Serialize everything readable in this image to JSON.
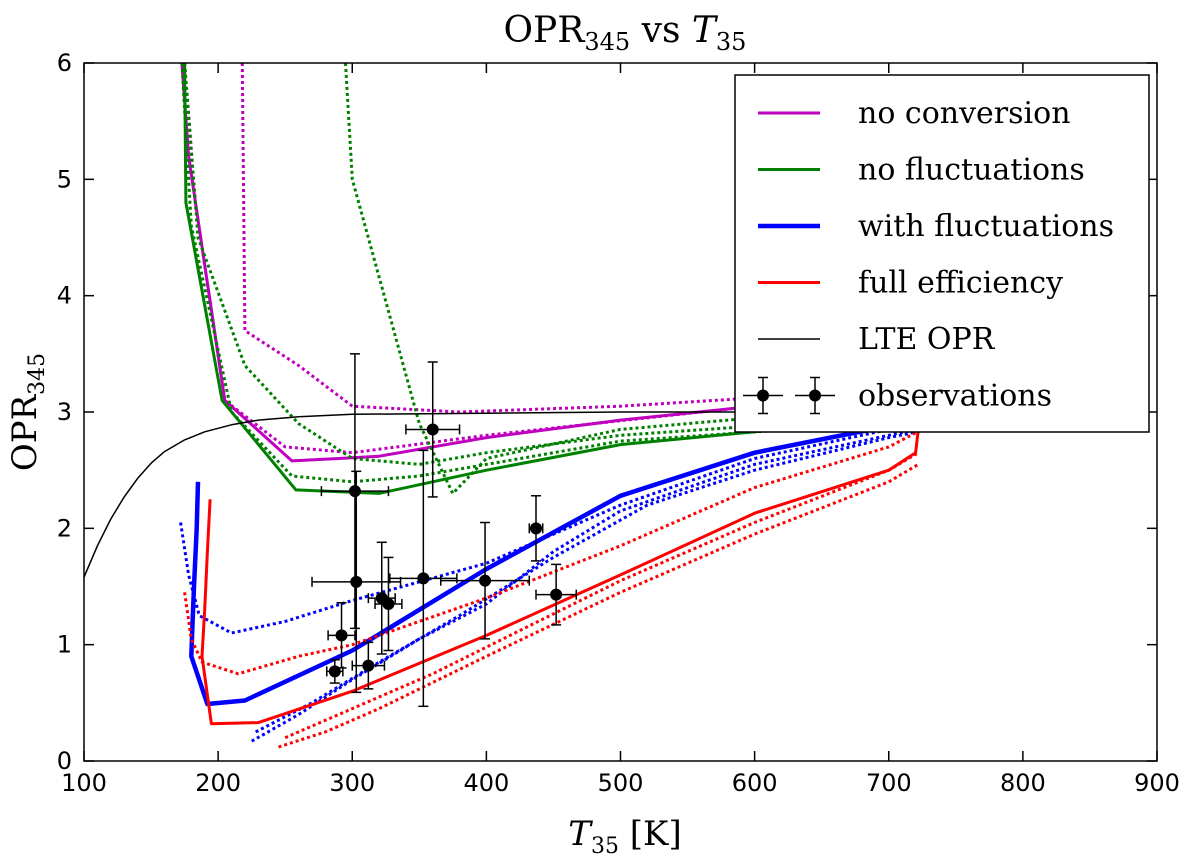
{
  "chart_data": {
    "type": "line",
    "title": {
      "base": "OPR",
      "base_sub": "345",
      "mid": " vs ",
      "var": "T",
      "var_sub": "35"
    },
    "xlabel": {
      "var": "T",
      "var_sub": "35",
      "unit": " [K]"
    },
    "ylabel": {
      "base": "OPR",
      "base_sub": "345"
    },
    "xlim": [
      100,
      900
    ],
    "ylim": [
      0,
      6
    ],
    "xticks": [
      100,
      200,
      300,
      400,
      500,
      600,
      700,
      800,
      900
    ],
    "yticks": [
      0,
      1,
      2,
      3,
      4,
      5,
      6
    ],
    "xtick_labels": [
      "100",
      "200",
      "300",
      "400",
      "500",
      "600",
      "700",
      "800",
      "900"
    ],
    "ytick_labels": [
      "0",
      "1",
      "2",
      "3",
      "4",
      "5",
      "6"
    ],
    "grid": false,
    "legend_position": "top-right",
    "colors": {
      "no_conversion": "#bf00bf",
      "no_fluctuations": "#008000",
      "with_fluctuations": "#0000ff",
      "full_efficiency": "#ff0000",
      "lte": "#000000",
      "observations": "#000000"
    },
    "series": [
      {
        "name": "no conversion",
        "color": "#bf00bf",
        "style": "solid",
        "width": 3,
        "points": [
          [
            173,
            6.0
          ],
          [
            178,
            5.2
          ],
          [
            205,
            3.1
          ],
          [
            255,
            2.58
          ],
          [
            290,
            2.6
          ],
          [
            320,
            2.62
          ],
          [
            400,
            2.78
          ],
          [
            500,
            2.93
          ],
          [
            600,
            3.05
          ],
          [
            640,
            3.1
          ]
        ]
      },
      {
        "name": "no conversion (dotted 1)",
        "color": "#bf00bf",
        "style": "dotted",
        "width": 3,
        "points": [
          [
            218,
            6.0
          ],
          [
            220,
            3.7
          ],
          [
            260,
            3.4
          ],
          [
            300,
            3.05
          ],
          [
            380,
            3.0
          ],
          [
            500,
            3.05
          ],
          [
            640,
            3.15
          ]
        ]
      },
      {
        "name": "no conversion (dotted 2)",
        "color": "#bf00bf",
        "style": "dotted",
        "width": 3,
        "points": [
          [
            175,
            6.0
          ],
          [
            183,
            4.8
          ],
          [
            205,
            3.1
          ],
          [
            250,
            2.7
          ],
          [
            300,
            2.65
          ],
          [
            400,
            2.8
          ],
          [
            640,
            3.1
          ]
        ]
      },
      {
        "name": "no fluctuations",
        "color": "#008000",
        "style": "solid",
        "width": 3,
        "points": [
          [
            175,
            6.0
          ],
          [
            176,
            4.8
          ],
          [
            203,
            3.1
          ],
          [
            258,
            2.33
          ],
          [
            320,
            2.3
          ],
          [
            400,
            2.5
          ],
          [
            500,
            2.72
          ],
          [
            600,
            2.83
          ],
          [
            690,
            2.93
          ]
        ]
      },
      {
        "name": "no fluctuations (dotted 1)",
        "color": "#008000",
        "style": "dotted",
        "width": 3,
        "points": [
          [
            295,
            6.0
          ],
          [
            300,
            5.0
          ],
          [
            350,
            2.9
          ],
          [
            375,
            2.3
          ],
          [
            400,
            2.6
          ],
          [
            500,
            2.85
          ],
          [
            600,
            2.95
          ],
          [
            690,
            3.0
          ]
        ]
      },
      {
        "name": "no fluctuations (dotted 2)",
        "color": "#008000",
        "style": "dotted",
        "width": 3,
        "points": [
          [
            175,
            6.0
          ],
          [
            185,
            4.5
          ],
          [
            220,
            3.4
          ],
          [
            260,
            2.9
          ],
          [
            300,
            2.6
          ],
          [
            350,
            2.55
          ],
          [
            400,
            2.65
          ],
          [
            500,
            2.8
          ],
          [
            690,
            2.95
          ]
        ]
      },
      {
        "name": "no fluctuations (dotted 3)",
        "color": "#008000",
        "style": "dotted",
        "width": 3,
        "points": [
          [
            173,
            6.0
          ],
          [
            180,
            4.6
          ],
          [
            210,
            3.0
          ],
          [
            255,
            2.45
          ],
          [
            300,
            2.4
          ],
          [
            350,
            2.45
          ],
          [
            400,
            2.55
          ],
          [
            500,
            2.75
          ],
          [
            690,
            2.9
          ]
        ]
      },
      {
        "name": "with fluctuations",
        "color": "#0000ff",
        "style": "solid",
        "width": 4.5,
        "points": [
          [
            185,
            2.4
          ],
          [
            184,
            2.0
          ],
          [
            182,
            1.5
          ],
          [
            181,
            1.2
          ],
          [
            180,
            0.9
          ],
          [
            192,
            0.49
          ],
          [
            220,
            0.52
          ],
          [
            300,
            0.95
          ],
          [
            400,
            1.65
          ],
          [
            500,
            2.28
          ],
          [
            600,
            2.65
          ],
          [
            700,
            2.88
          ],
          [
            760,
            3.0
          ]
        ]
      },
      {
        "name": "with fluctuations (dotted 1)",
        "color": "#0000ff",
        "style": "dotted",
        "width": 3,
        "points": [
          [
            172,
            2.05
          ],
          [
            178,
            1.6
          ],
          [
            186,
            1.25
          ],
          [
            210,
            1.1
          ],
          [
            250,
            1.2
          ],
          [
            300,
            1.38
          ],
          [
            400,
            1.7
          ],
          [
            500,
            2.2
          ],
          [
            600,
            2.6
          ],
          [
            700,
            2.85
          ],
          [
            760,
            2.98
          ]
        ]
      },
      {
        "name": "with fluctuations (dotted 2)",
        "color": "#0000ff",
        "style": "dotted",
        "width": 3,
        "points": [
          [
            225,
            0.17
          ],
          [
            260,
            0.4
          ],
          [
            300,
            0.7
          ],
          [
            350,
            1.05
          ],
          [
            400,
            1.35
          ],
          [
            450,
            1.8
          ],
          [
            500,
            2.15
          ],
          [
            600,
            2.55
          ],
          [
            700,
            2.8
          ],
          [
            760,
            2.95
          ]
        ]
      },
      {
        "name": "with fluctuations (dotted 3)",
        "color": "#0000ff",
        "style": "dotted",
        "width": 3,
        "points": [
          [
            228,
            0.25
          ],
          [
            270,
            0.5
          ],
          [
            320,
            0.85
          ],
          [
            380,
            1.25
          ],
          [
            450,
            1.75
          ],
          [
            520,
            2.2
          ],
          [
            600,
            2.5
          ],
          [
            700,
            2.78
          ],
          [
            760,
            2.92
          ]
        ]
      },
      {
        "name": "full efficiency",
        "color": "#ff0000",
        "style": "solid",
        "width": 3,
        "points": [
          [
            194,
            2.25
          ],
          [
            192,
            1.8
          ],
          [
            190,
            1.3
          ],
          [
            188,
            0.9
          ],
          [
            195,
            0.32
          ],
          [
            230,
            0.33
          ],
          [
            300,
            0.6
          ],
          [
            400,
            1.08
          ],
          [
            500,
            1.6
          ],
          [
            600,
            2.13
          ],
          [
            700,
            2.5
          ],
          [
            720,
            2.65
          ],
          [
            722,
            2.85
          ]
        ]
      },
      {
        "name": "full efficiency (dotted 1)",
        "color": "#ff0000",
        "style": "dotted",
        "width": 3,
        "points": [
          [
            175,
            1.45
          ],
          [
            180,
            1.05
          ],
          [
            188,
            0.85
          ],
          [
            215,
            0.75
          ],
          [
            260,
            0.9
          ],
          [
            300,
            1.0
          ],
          [
            400,
            1.4
          ],
          [
            500,
            1.85
          ],
          [
            600,
            2.35
          ],
          [
            700,
            2.7
          ],
          [
            720,
            2.82
          ]
        ]
      },
      {
        "name": "full efficiency (dotted 2)",
        "color": "#ff0000",
        "style": "dotted",
        "width": 3,
        "points": [
          [
            245,
            0.12
          ],
          [
            280,
            0.25
          ],
          [
            320,
            0.45
          ],
          [
            400,
            0.9
          ],
          [
            500,
            1.45
          ],
          [
            600,
            1.95
          ],
          [
            700,
            2.4
          ],
          [
            722,
            2.55
          ]
        ]
      },
      {
        "name": "full efficiency (dotted 3)",
        "color": "#ff0000",
        "style": "dotted",
        "width": 3,
        "points": [
          [
            250,
            0.2
          ],
          [
            300,
            0.45
          ],
          [
            360,
            0.75
          ],
          [
            430,
            1.15
          ],
          [
            500,
            1.55
          ],
          [
            600,
            2.05
          ],
          [
            700,
            2.5
          ],
          [
            722,
            2.65
          ]
        ]
      },
      {
        "name": "LTE OPR",
        "color": "#000000",
        "style": "solid",
        "width": 1.5,
        "points": [
          [
            100,
            1.58
          ],
          [
            110,
            1.85
          ],
          [
            120,
            2.08
          ],
          [
            130,
            2.27
          ],
          [
            140,
            2.43
          ],
          [
            150,
            2.56
          ],
          [
            160,
            2.66
          ],
          [
            175,
            2.76
          ],
          [
            190,
            2.83
          ],
          [
            210,
            2.89
          ],
          [
            230,
            2.93
          ],
          [
            260,
            2.96
          ],
          [
            300,
            2.98
          ],
          [
            400,
            2.99
          ],
          [
            500,
            3.0
          ],
          [
            640,
            3.0
          ]
        ]
      }
    ],
    "observations": [
      {
        "x": 287,
        "y": 0.77,
        "xerr": 6,
        "yerr": 0.1
      },
      {
        "x": 292,
        "y": 1.08,
        "xerr": 10,
        "yerr": 0.28
      },
      {
        "x": 302,
        "y": 2.32,
        "xerr": 25,
        "yerr": 1.18
      },
      {
        "x": 303,
        "y": 1.54,
        "xerr": 33,
        "yerr": 0.95
      },
      {
        "x": 312,
        "y": 0.82,
        "xerr": 12,
        "yerr": 0.2
      },
      {
        "x": 322,
        "y": 1.4,
        "xerr": 10,
        "yerr": 0.48
      },
      {
        "x": 327,
        "y": 1.35,
        "xerr": 10,
        "yerr": 0.4
      },
      {
        "x": 353,
        "y": 1.57,
        "xerr": 25,
        "yerr": 1.1
      },
      {
        "x": 360,
        "y": 2.85,
        "xerr": 20,
        "yerr": 0.58
      },
      {
        "x": 399,
        "y": 1.55,
        "xerr": 33,
        "yerr": 0.5
      },
      {
        "x": 437,
        "y": 2.0,
        "xerr": 5,
        "yerr": 0.28
      },
      {
        "x": 452,
        "y": 1.43,
        "xerr": 15,
        "yerr": 0.26
      }
    ],
    "legend": [
      {
        "label": "no conversion",
        "color": "#bf00bf",
        "width": 3,
        "kind": "line"
      },
      {
        "label": "no fluctuations",
        "color": "#008000",
        "width": 3,
        "kind": "line"
      },
      {
        "label": "with fluctuations",
        "color": "#0000ff",
        "width": 4.5,
        "kind": "line"
      },
      {
        "label": "full efficiency",
        "color": "#ff0000",
        "width": 3,
        "kind": "line"
      },
      {
        "label": "LTE OPR",
        "color": "#000000",
        "width": 1.5,
        "kind": "line"
      },
      {
        "label": "observations",
        "color": "#000000",
        "width": 2,
        "kind": "errorbar"
      }
    ]
  }
}
